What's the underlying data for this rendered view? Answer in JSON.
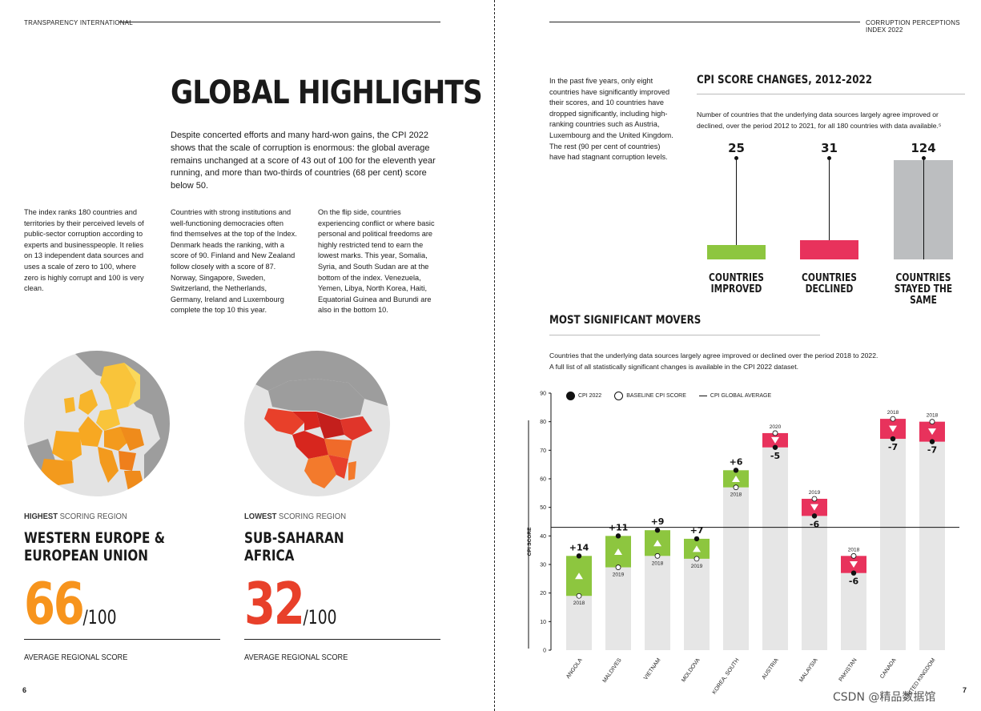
{
  "header": {
    "left": "TRANSPARENCY INTERNATIONAL",
    "right": "CORRUPTION PERCEPTIONS INDEX 2022"
  },
  "left_page": {
    "title": "GLOBAL HIGHLIGHTS",
    "lead": "Despite concerted efforts and many hard-won gains, the CPI 2022 shows that the scale of corruption is enormous: the global average remains unchanged at a score of 43 out of 100 for the eleventh year running, and more than two-thirds of countries (68 per cent) score below 50.",
    "col1": "The index ranks 180 countries and territories by their perceived levels of public-sector corruption according to experts and businesspeople. It relies on 13 independent data sources and uses a scale of zero to 100, where zero is highly corrupt and 100 is very clean.",
    "col2": "Countries with strong institutions and well-functioning democracies often find themselves at the top of the Index. Denmark heads the ranking, with a score of 90. Finland and New Zealand follow closely with a score of 87. Norway, Singapore, Sweden, Switzerland, the Netherlands, Germany, Ireland and Luxembourg complete the top 10 this year.",
    "col3": "On the flip side, countries experiencing conflict or where basic personal and political freedoms are highly restricted tend to earn the lowest marks. This year, Somalia, Syria, and South Sudan are at the bottom of the index. Venezuela, Yemen, Libya, North Korea, Haiti, Equatorial Guinea and Burundi are also in the bottom 10.",
    "highest": {
      "label_bold": "HIGHEST",
      "label_rest": " SCORING REGION",
      "name_line1": "WESTERN EUROPE &",
      "name_line2": "EUROPEAN UNION",
      "score": "66",
      "out_of": "/100",
      "avg_label": "AVERAGE REGIONAL SCORE",
      "color": "#f7941d"
    },
    "lowest": {
      "label_bold": "LOWEST",
      "label_rest": " SCORING REGION",
      "name_line1": "SUB-SAHARAN",
      "name_line2": "AFRICA",
      "score": "32",
      "out_of": "/100",
      "avg_label": "AVERAGE REGIONAL SCORE",
      "color": "#e8402a"
    },
    "page_number": "6"
  },
  "right_page": {
    "intro": "In the past five years, only eight countries have significantly improved their scores, and 10 countries have dropped significantly, including high-ranking countries such as Austria, Luxembourg and the United Kingdom. The rest (90 per cent of countries) have had stagnant corruption levels.",
    "score_changes": {
      "title": "CPI SCORE CHANGES, 2012-2022",
      "note": "Number of countries that the underlying data sources largely agree improved or declined, over the period 2012 to 2021, for all 180 countries with data available.⁵",
      "bars": [
        {
          "count": "25",
          "label1": "COUNTRIES",
          "label2": "IMPROVED",
          "value": 25,
          "color": "#8dc63f"
        },
        {
          "count": "31",
          "label1": "COUNTRIES",
          "label2": "DECLINED",
          "value": 31,
          "color": "#e8325c"
        },
        {
          "count": "124",
          "label1": "COUNTRIES",
          "label2": "STAYED THE SAME",
          "value": 124,
          "color": "#bcbec0"
        }
      ]
    },
    "movers": {
      "title": "MOST SIGNIFICANT MOVERS",
      "note_line1": "Countries that the underlying data sources largely agree improved or declined over the period 2018 to 2022.",
      "note_line2": "A full list of all statistically significant changes is available in the CPI 2022 dataset.",
      "legend": {
        "cpi": "CPI 2022",
        "baseline": "BASELINE CPI SCORE",
        "avg": "CPI GLOBAL AVERAGE"
      }
    },
    "page_number": "7"
  },
  "watermark": "CSDN @精品数据馆",
  "chart_data": {
    "type": "bar",
    "title": "MOST SIGNIFICANT MOVERS",
    "ylabel": "CPI SCORE",
    "ylim": [
      0,
      90
    ],
    "yticks": [
      0,
      10,
      20,
      30,
      40,
      50,
      60,
      70,
      80,
      90
    ],
    "global_average": 43,
    "categories": [
      "ANGOLA",
      "MALDIVES",
      "VIETNAM",
      "MOLDOVA",
      "KOREA, SOUTH",
      "AUSTRIA",
      "MALAYSIA",
      "PAKISTAN",
      "CANADA",
      "UNITED KINGDOM"
    ],
    "series": [
      {
        "name": "CPI 2022",
        "values": [
          33,
          40,
          42,
          39,
          63,
          71,
          47,
          27,
          74,
          73
        ]
      },
      {
        "name": "BASELINE CPI SCORE",
        "values": [
          19,
          29,
          33,
          32,
          57,
          76,
          53,
          33,
          81,
          80
        ]
      }
    ],
    "change_labels": [
      "+14",
      "+11",
      "+9",
      "+7",
      "+6",
      "-5",
      "-6",
      "-6",
      "-7",
      "-7"
    ],
    "baseline_years": [
      "2018",
      "2019",
      "2018",
      "2019",
      "2018",
      "2020",
      "2019",
      "2018",
      "2018",
      "2018"
    ],
    "improve_color": "#8dc63f",
    "decline_color": "#e8325c",
    "background_bar_color": "#e6e6e6"
  }
}
